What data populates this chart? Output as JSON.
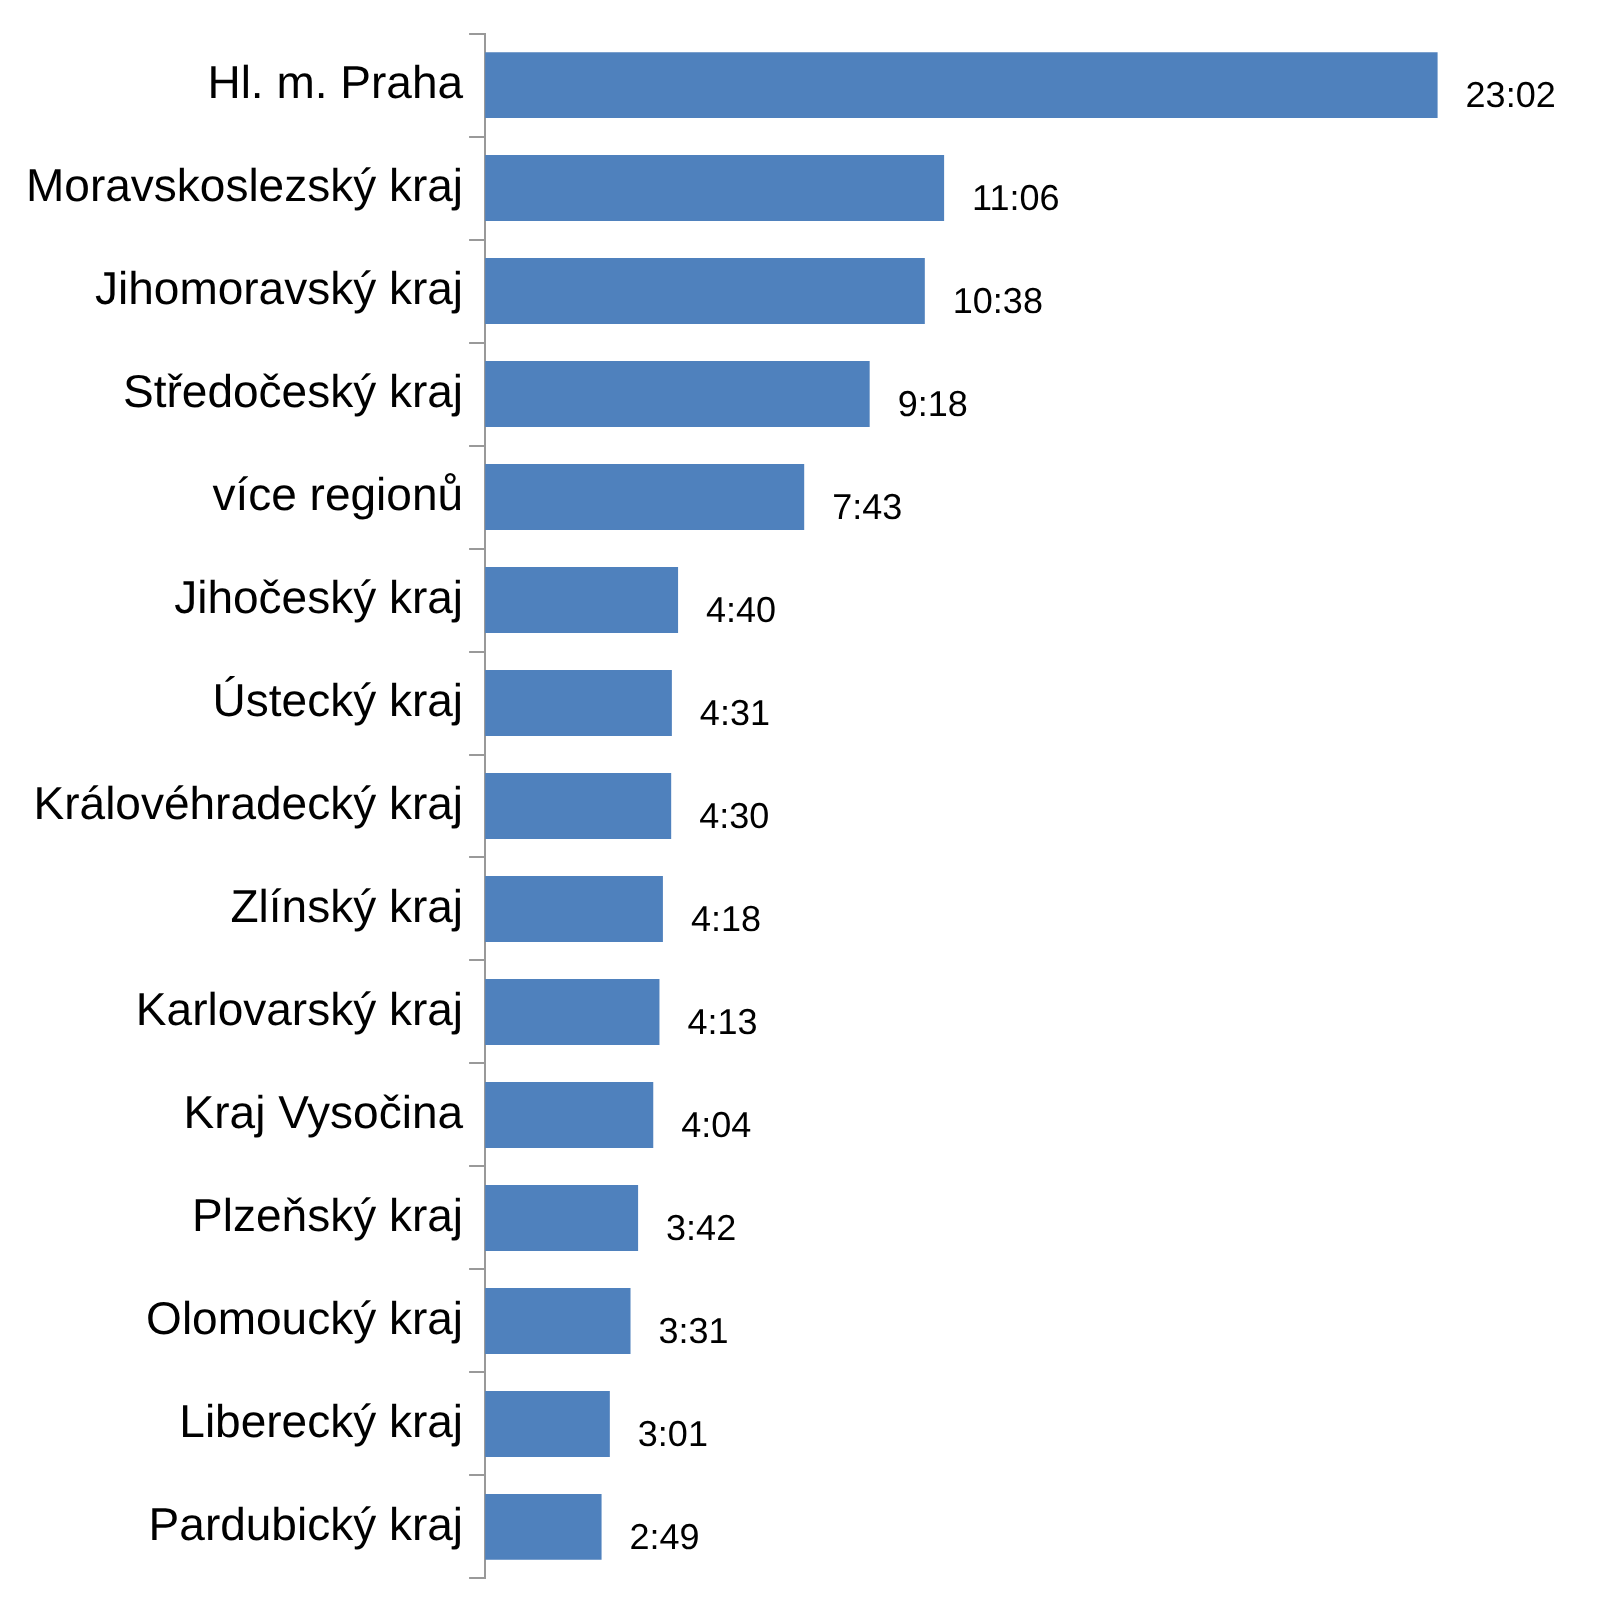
{
  "chart_data": {
    "type": "bar",
    "orientation": "horizontal",
    "categories": [
      "Hl. m. Praha",
      "Moravskoslezský kraj",
      "Jihomoravský kraj",
      "Středočeský kraj",
      "více regionů",
      "Jihočeský kraj",
      "Ústecký kraj",
      "Královéhradecký kraj",
      "Zlínský kraj",
      "Karlovarský kraj",
      "Kraj Vysočina",
      "Plzeňský kraj",
      "Olomoucký kraj",
      "Liberecký kraj",
      "Pardubický kraj"
    ],
    "values": [
      1382,
      666,
      638,
      558,
      463,
      280,
      271,
      270,
      258,
      253,
      244,
      222,
      211,
      181,
      169
    ],
    "value_labels": [
      "23:02",
      "11:06",
      "10:38",
      "9:18",
      "7:43",
      "4:40",
      "4:31",
      "4:30",
      "4:18",
      "4:13",
      "4:04",
      "3:42",
      "3:31",
      "3:01",
      "2:49"
    ],
    "color": "#4f81bd",
    "legend": false,
    "tick_labels": "y"
  }
}
